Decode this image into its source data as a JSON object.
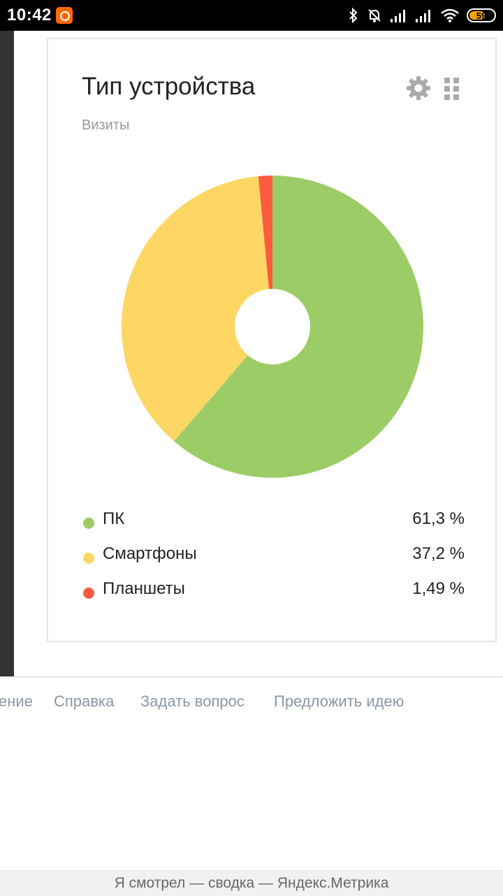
{
  "status_bar": {
    "time": "10:42",
    "battery": "59",
    "icons": [
      "bluetooth-icon",
      "muted-bell-icon",
      "signal-icon",
      "signal-icon",
      "wifi-icon",
      "battery-icon"
    ]
  },
  "card": {
    "title": "Тип устройства",
    "subtitle": "Визиты",
    "icons": [
      "gear-icon",
      "grid-icon"
    ]
  },
  "chart_data": {
    "type": "pie",
    "categories": [
      "ПК",
      "Смартфоны",
      "Планшеты"
    ],
    "values": [
      61.3,
      37.2,
      1.49
    ],
    "value_labels": [
      "61,3 %",
      "37,2 %",
      "1,49 %"
    ],
    "colors": [
      "#9ccc65",
      "#fdd663",
      "#fb5b3f"
    ],
    "donut": true,
    "legend": "bottom"
  },
  "footer": {
    "links": [
      "ение",
      "Справка",
      "Задать вопрос",
      "Предложить идею"
    ]
  },
  "bottom_bar": {
    "title": "Я смотрел — сводка — Яндекс.Метрика"
  }
}
